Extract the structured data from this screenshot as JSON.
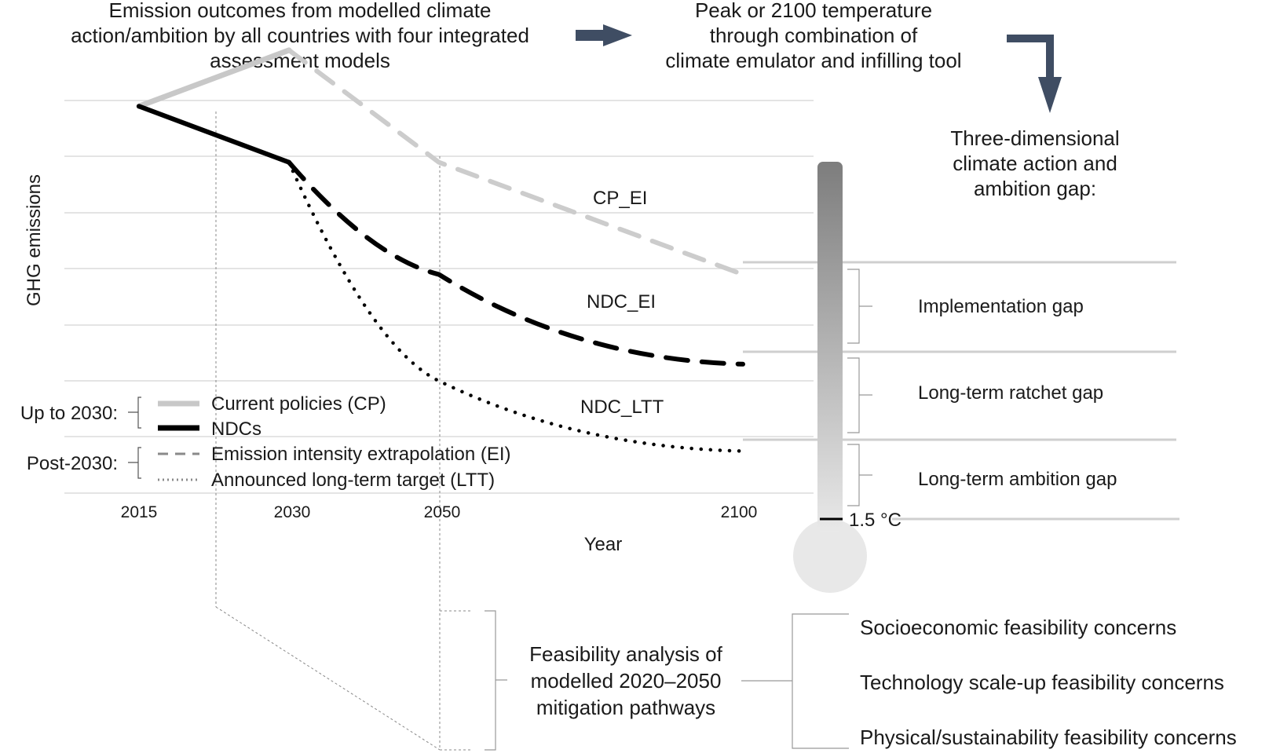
{
  "header": {
    "left_lines": [
      "Emission outcomes from modelled climate",
      "action/ambition by all countries with four integrated",
      "assessment models"
    ],
    "right_lines": [
      "Peak or 2100 temperature",
      "through combination of",
      "climate emulator and infilling tool"
    ]
  },
  "gap": {
    "title_lines": [
      "Three-dimensional",
      "climate action and",
      "ambition gap:"
    ],
    "implementation": "Implementation gap",
    "ratchet": "Long-term ratchet gap",
    "ambition": "Long-term ambition gap",
    "threshold": "1.5 °C"
  },
  "chart_data": {
    "type": "line",
    "ylabel": "GHG emissions",
    "xlabel": "Year",
    "x_ticks": [
      "2015",
      "2030",
      "2050",
      "2100"
    ],
    "series": [
      {
        "name": "CP",
        "x": [
          2015,
          2030
        ],
        "y": [
          6.9,
          7.9
        ]
      },
      {
        "name": "NDCs",
        "x": [
          2015,
          2030
        ],
        "y": [
          6.9,
          5.9
        ]
      },
      {
        "name": "CP_EI",
        "x": [
          2030,
          2050,
          2100
        ],
        "y": [
          7.9,
          5.9,
          3.9
        ]
      },
      {
        "name": "NDC_EI",
        "x": [
          2030,
          2050,
          2100
        ],
        "y": [
          5.9,
          3.9,
          2.3
        ]
      },
      {
        "name": "NDC_LTT",
        "x": [
          2030,
          2050,
          2100
        ],
        "y": [
          5.9,
          2.0,
          0.75
        ]
      }
    ],
    "series_labels": {
      "cp_ei": "CP_EI",
      "ndc_ei": "NDC_EI",
      "ndc_ltt": "NDC_LTT"
    },
    "legend": {
      "group1": "Up to 2030:",
      "group2": "Post-2030:",
      "entries": [
        "Current policies (CP)",
        "NDCs",
        "Emission intensity extrapolation (EI)",
        "Announced long-term target (LTT)"
      ]
    }
  },
  "feasibility": {
    "title_lines": [
      "Feasibility analysis of",
      "modelled 2020–2050",
      "mitigation pathways"
    ],
    "concerns": [
      "Socioeconomic feasibility concerns",
      "Technology scale-up feasibility concerns",
      "Physical/sustainability feasibility concerns"
    ]
  },
  "colors": {
    "cp": "#c8c8c8",
    "cp_ei": "#cccccc",
    "ndc": "#000000",
    "arrow": "#3f4d63",
    "grid": "#dcdcdc",
    "thermo_top": "#808080",
    "thermo_bottom": "#e8e8e8"
  }
}
